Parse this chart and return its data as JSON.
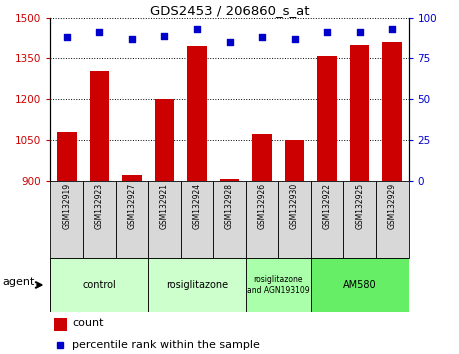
{
  "title": "GDS2453 / 206860_s_at",
  "samples": [
    "GSM132919",
    "GSM132923",
    "GSM132927",
    "GSM132921",
    "GSM132924",
    "GSM132928",
    "GSM132926",
    "GSM132930",
    "GSM132922",
    "GSM132925",
    "GSM132929"
  ],
  "count_values": [
    1080,
    1305,
    920,
    1200,
    1395,
    905,
    1070,
    1048,
    1360,
    1400,
    1410
  ],
  "percentile_values": [
    88,
    91,
    87,
    89,
    93,
    85,
    88,
    87,
    91,
    91,
    93
  ],
  "ylim_left": [
    900,
    1500
  ],
  "ylim_right": [
    0,
    100
  ],
  "yticks_left": [
    900,
    1050,
    1200,
    1350,
    1500
  ],
  "yticks_right": [
    0,
    25,
    50,
    75,
    100
  ],
  "bar_color": "#cc0000",
  "dot_color": "#0000cc",
  "grid_color": "#000000",
  "agent_groups": [
    {
      "label": "control",
      "start": 0,
      "end": 3,
      "color": "#ccffcc"
    },
    {
      "label": "rosiglitazone",
      "start": 3,
      "end": 6,
      "color": "#ccffcc"
    },
    {
      "label": "rosiglitazone\nand AGN193109",
      "start": 6,
      "end": 8,
      "color": "#aaffaa"
    },
    {
      "label": "AM580",
      "start": 8,
      "end": 11,
      "color": "#66ee66"
    }
  ],
  "agent_label": "agent",
  "legend_count_label": "count",
  "legend_percentile_label": "percentile rank within the sample",
  "bar_color_left_axis": "#cc0000",
  "right_axis_color": "#0000cc"
}
